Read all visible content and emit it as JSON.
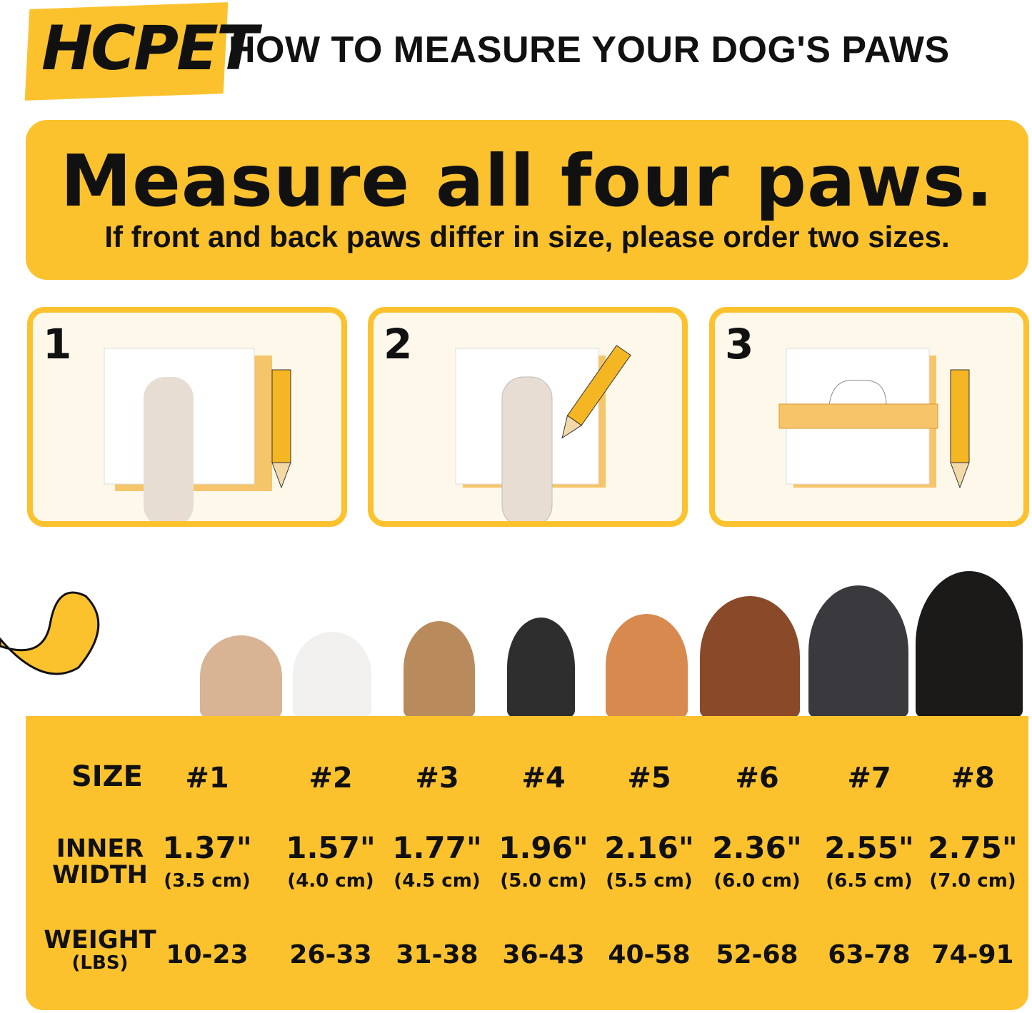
{
  "brand": {
    "logo": "HCPET",
    "title": "HOW TO MEASURE YOUR DOG'S PAWS"
  },
  "banner": {
    "headline": "Measure all four paws.",
    "subline": "If front and back paws differ in size, please order two sizes."
  },
  "steps": [
    {
      "number": "1",
      "icon": "paw-on-paper-icon"
    },
    {
      "number": "2",
      "icon": "trace-paw-pencil-icon"
    },
    {
      "number": "3",
      "icon": "ruler-measure-icon"
    }
  ],
  "colors": {
    "accent": "#fcc22e",
    "panel_bg": "#fdf8ea"
  },
  "size_chart": {
    "labels": {
      "size": "SIZE",
      "inner_width_1": "INNER",
      "inner_width_2": "WIDTH",
      "weight": "WEIGHT",
      "weight_unit": "(LBS)"
    },
    "sizes": [
      {
        "size": "#1",
        "inch": "1.37\"",
        "cm": "(3.5 cm)",
        "weight": "10-23"
      },
      {
        "size": "#2",
        "inch": "1.57\"",
        "cm": "(4.0 cm)",
        "weight": "26-33"
      },
      {
        "size": "#3",
        "inch": "1.77\"",
        "cm": "(4.5 cm)",
        "weight": "31-38"
      },
      {
        "size": "#4",
        "inch": "1.96\"",
        "cm": "(5.0 cm)",
        "weight": "36-43"
      },
      {
        "size": "#5",
        "inch": "2.16\"",
        "cm": "(5.5 cm)",
        "weight": "40-58"
      },
      {
        "size": "#6",
        "inch": "2.36\"",
        "cm": "(6.0 cm)",
        "weight": "52-68"
      },
      {
        "size": "#7",
        "inch": "2.55\"",
        "cm": "(6.5 cm)",
        "weight": "63-78"
      },
      {
        "size": "#8",
        "inch": "2.75\"",
        "cm": "(7.0 cm)",
        "weight": "74-91"
      }
    ]
  }
}
